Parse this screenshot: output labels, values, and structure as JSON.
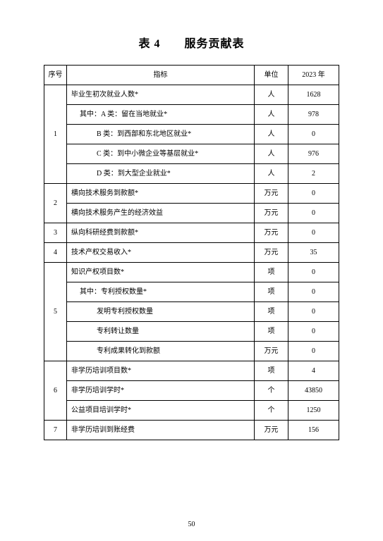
{
  "title": "表 4　　服务贡献表",
  "headers": {
    "seq": "序号",
    "indicator": "指标",
    "unit": "单位",
    "year": "2023 年"
  },
  "groups": [
    {
      "seq": "1",
      "rows": [
        {
          "label": "毕业生初次就业人数*",
          "indent": 0,
          "unit": "人",
          "value": "1628"
        },
        {
          "label": "其中：A 类：留在当地就业*",
          "indent": 1,
          "unit": "人",
          "value": "978"
        },
        {
          "label": "B 类：到西部和东北地区就业*",
          "indent": 2,
          "unit": "人",
          "value": "0"
        },
        {
          "label": "C 类：到中小微企业等基层就业*",
          "indent": 2,
          "unit": "人",
          "value": "976"
        },
        {
          "label": "D 类：到大型企业就业*",
          "indent": 2,
          "unit": "人",
          "value": "2"
        }
      ]
    },
    {
      "seq": "2",
      "rows": [
        {
          "label": "横向技术服务到款额*",
          "indent": 0,
          "unit": "万元",
          "value": "0"
        },
        {
          "label": "横向技术服务产生的经济效益",
          "indent": 0,
          "unit": "万元",
          "value": "0"
        }
      ]
    },
    {
      "seq": "3",
      "rows": [
        {
          "label": "纵向科研经费到款额*",
          "indent": 0,
          "unit": "万元",
          "value": "0"
        }
      ]
    },
    {
      "seq": "4",
      "rows": [
        {
          "label": "技术产权交易收入*",
          "indent": 0,
          "unit": "万元",
          "value": "35"
        }
      ]
    },
    {
      "seq": "5",
      "rows": [
        {
          "label": "知识产权项目数*",
          "indent": 0,
          "unit": "项",
          "value": "0"
        },
        {
          "label": "其中：专利授权数量*",
          "indent": 1,
          "unit": "项",
          "value": "0"
        },
        {
          "label": "发明专利授权数量",
          "indent": 2,
          "unit": "项",
          "value": "0"
        },
        {
          "label": "专利转让数量",
          "indent": 2,
          "unit": "项",
          "value": "0"
        },
        {
          "label": "专利成果转化到款额",
          "indent": 2,
          "unit": "万元",
          "value": "0"
        }
      ]
    },
    {
      "seq": "6",
      "rows": [
        {
          "label": "非学历培训项目数*",
          "indent": 0,
          "unit": "项",
          "value": "4"
        },
        {
          "label": "非学历培训学时*",
          "indent": 0,
          "unit": "个",
          "value": "43850"
        },
        {
          "label": "公益项目培训学时*",
          "indent": 0,
          "unit": "个",
          "value": "1250"
        }
      ]
    },
    {
      "seq": "7",
      "rows": [
        {
          "label": "非学历培训到账经费",
          "indent": 0,
          "unit": "万元",
          "value": "156"
        }
      ]
    }
  ],
  "page_number": "50"
}
